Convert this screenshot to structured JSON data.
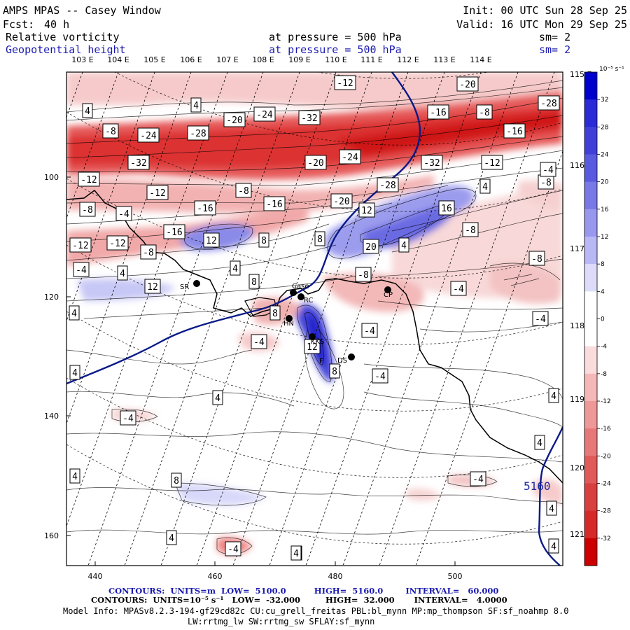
{
  "header": {
    "title": "AMPS MPAS -- Casey Window",
    "fcst_prefix": "Fcst:",
    "fcst_value": "40 h",
    "init": "Init: 00 UTC Sun 28 Sep 25",
    "valid": "Valid: 16 UTC Mon 29 Sep 25",
    "field1_name": "Relative vorticity",
    "field1_level": "at pressure =  500 hPa",
    "field1_sm": "sm= 2",
    "field2_name": "Geopotential height",
    "field2_level": "at pressure =  500 hPa",
    "field2_sm": "sm= 2"
  },
  "lon_labels_top": [
    "103 E",
    "104 E",
    "105 E",
    "106 E",
    "107 E",
    "108 E",
    "109 E",
    "110 E",
    "111 E",
    "112 E",
    "113 E",
    "114 E"
  ],
  "lat_labels_right": [
    "115 E",
    "116 E",
    "117 E",
    "118 E",
    "119 E",
    "120 E",
    "121 E"
  ],
  "x_ticks": [
    "440",
    "460",
    "480",
    "500"
  ],
  "y_ticks": [
    "100",
    "120",
    "140",
    "160"
  ],
  "colorbar": {
    "unit": "10⁻⁵ s⁻¹",
    "ticks": [
      "32",
      "28",
      "24",
      "20",
      "16",
      "12",
      "8",
      "4",
      "0",
      "-4",
      "-8",
      "-12",
      "-16",
      "-20",
      "-24",
      "-28",
      "-32"
    ],
    "colors": [
      "#0000cc",
      "#2a2ad6",
      "#4040d8",
      "#5a5ae0",
      "#7878e6",
      "#9898ee",
      "#b8b8f4",
      "#dcdcfa",
      "#ffffff",
      "#ffffff",
      "#fadcdc",
      "#f4b8b8",
      "#ee9898",
      "#e67878",
      "#e05a5a",
      "#d84040",
      "#d62a2a",
      "#cc0000"
    ]
  },
  "contour_labels": [
    {
      "t": "4"
    },
    {
      "t": "4"
    },
    {
      "t": "-12"
    },
    {
      "t": "-20"
    },
    {
      "t": "-28"
    },
    {
      "t": "-8"
    },
    {
      "t": "-16"
    },
    {
      "t": "-8"
    },
    {
      "t": "-8"
    },
    {
      "t": "-24"
    },
    {
      "t": "-20"
    },
    {
      "t": "-24"
    },
    {
      "t": "-32"
    },
    {
      "t": "-28"
    },
    {
      "t": "-16"
    },
    {
      "t": "-12"
    },
    {
      "t": "-32"
    },
    {
      "t": "-24"
    },
    {
      "t": "-20"
    },
    {
      "t": "-32"
    },
    {
      "t": "-12"
    },
    {
      "t": "-4"
    },
    {
      "t": "-16"
    },
    {
      "t": "-12"
    },
    {
      "t": "-8"
    },
    {
      "t": "-16"
    },
    {
      "t": "-28"
    },
    {
      "t": "4"
    },
    {
      "t": "-8"
    },
    {
      "t": "-4"
    },
    {
      "t": "-16"
    },
    {
      "t": "-20"
    },
    {
      "t": "12"
    },
    {
      "t": "16"
    },
    {
      "t": "-8"
    },
    {
      "t": "-12"
    },
    {
      "t": "12"
    },
    {
      "t": "8"
    },
    {
      "t": "8"
    },
    {
      "t": "-12"
    },
    {
      "t": "-8"
    },
    {
      "t": "20"
    },
    {
      "t": "4"
    },
    {
      "t": "-4"
    },
    {
      "t": "4"
    },
    {
      "t": "4"
    },
    {
      "t": "-8"
    },
    {
      "t": "-8"
    },
    {
      "t": "12"
    },
    {
      "t": "8"
    },
    {
      "t": "-4"
    },
    {
      "t": "4"
    },
    {
      "t": "8"
    },
    {
      "t": "-4"
    },
    {
      "t": "-4"
    },
    {
      "t": "-4"
    },
    {
      "t": "12"
    },
    {
      "t": "8"
    },
    {
      "t": "-4"
    },
    {
      "t": "4"
    },
    {
      "t": "4"
    },
    {
      "t": "-4"
    },
    {
      "t": "4"
    },
    {
      "t": "4"
    },
    {
      "t": "8"
    },
    {
      "t": "-4"
    },
    {
      "t": "4"
    },
    {
      "t": "4"
    },
    {
      "t": "4"
    },
    {
      "t": "4"
    },
    {
      "t": "-4"
    },
    {
      "t": "4"
    },
    {
      "t": "4"
    }
  ],
  "stations": [
    {
      "name": "SR"
    },
    {
      "name": "Case"
    },
    {
      "name": "RC"
    },
    {
      "name": "HN"
    },
    {
      "name": "CP"
    },
    {
      "name": "KKS"
    },
    {
      "name": "F"
    },
    {
      "name": "DS"
    }
  ],
  "height_contour_label": "5160",
  "footer": {
    "line1_prefix": "CONTOURS:",
    "line1": "CONTOURS:  UNITS=m  LOW=  5100.0          HIGH=  5160.0        INTERVAL=   60.000",
    "line2": "CONTOURS:  UNITS=10⁻⁵ s⁻¹   LOW=  -32.000         HIGH=  32.000       INTERVAL=   4.0000",
    "line3": "Model Info: MPASv8.2.3-194-gf29cd82c CU:cu_grell_freitas PBL:bl_mynn MP:mp_thompson SF:sf_noahmp 8.0",
    "line4": "LW:rrtmg_lw SW:rrtmg_sw SFLAY:sf_mynn"
  }
}
